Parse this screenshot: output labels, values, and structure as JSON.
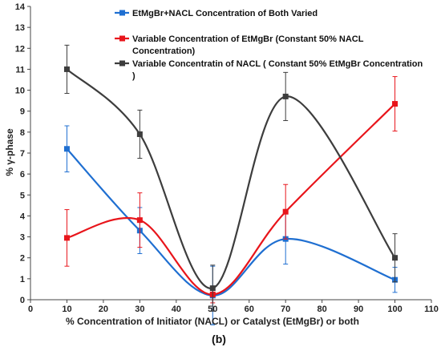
{
  "chart_data": {
    "type": "line",
    "title": "",
    "xlabel": "% Concentration of Initiator (NACL) or Catalyst (EtMgBr) or both",
    "ylabel": "% γ-phase",
    "xlim": [
      0,
      110
    ],
    "ylim": [
      0,
      14
    ],
    "xticks": [
      "0",
      "10",
      "20",
      "30",
      "40",
      "50",
      "60",
      "70",
      "80",
      "90",
      "100",
      "110"
    ],
    "yticks": [
      "0",
      "1",
      "2",
      "3",
      "4",
      "5",
      "6",
      "7",
      "8",
      "9",
      "10",
      "11",
      "12",
      "13",
      "14"
    ],
    "grid": false,
    "legend_placement": "top-center",
    "caption": "(b)",
    "x": [
      10,
      30,
      50,
      70,
      100
    ],
    "series": [
      {
        "name": "EtMgBr+NACL Concentration of Both Varied",
        "color": "#1f6fd1",
        "values": [
          7.2,
          3.3,
          0.2,
          2.9,
          0.95
        ],
        "errors": [
          1.1,
          1.1,
          1.4,
          1.2,
          0.6
        ]
      },
      {
        "name": "Variable Concentration of EtMgBr (Constant 50% NACL Concentration)",
        "color": "#e8151b",
        "values": [
          2.95,
          3.8,
          0.25,
          4.2,
          9.35
        ],
        "errors": [
          1.35,
          1.3,
          0.4,
          1.3,
          1.3
        ]
      },
      {
        "name": "Variable Concentratin of NACL ( Constant 50% EtMgBr Concentration )",
        "color": "#3d3d3d",
        "values": [
          11.0,
          7.9,
          0.55,
          9.7,
          2.0
        ],
        "errors": [
          1.15,
          1.15,
          1.1,
          1.15,
          1.15
        ]
      }
    ],
    "legend_lines": [
      [
        "EtMgBr+NACL Concentration of Both Varied"
      ],
      [
        "Variable Concentration of EtMgBr (Constant 50% NACL",
        "Concentration)"
      ],
      [
        "Variable Concentratin of NACL ( Constant 50% EtMgBr Concentration",
        ")"
      ]
    ]
  }
}
